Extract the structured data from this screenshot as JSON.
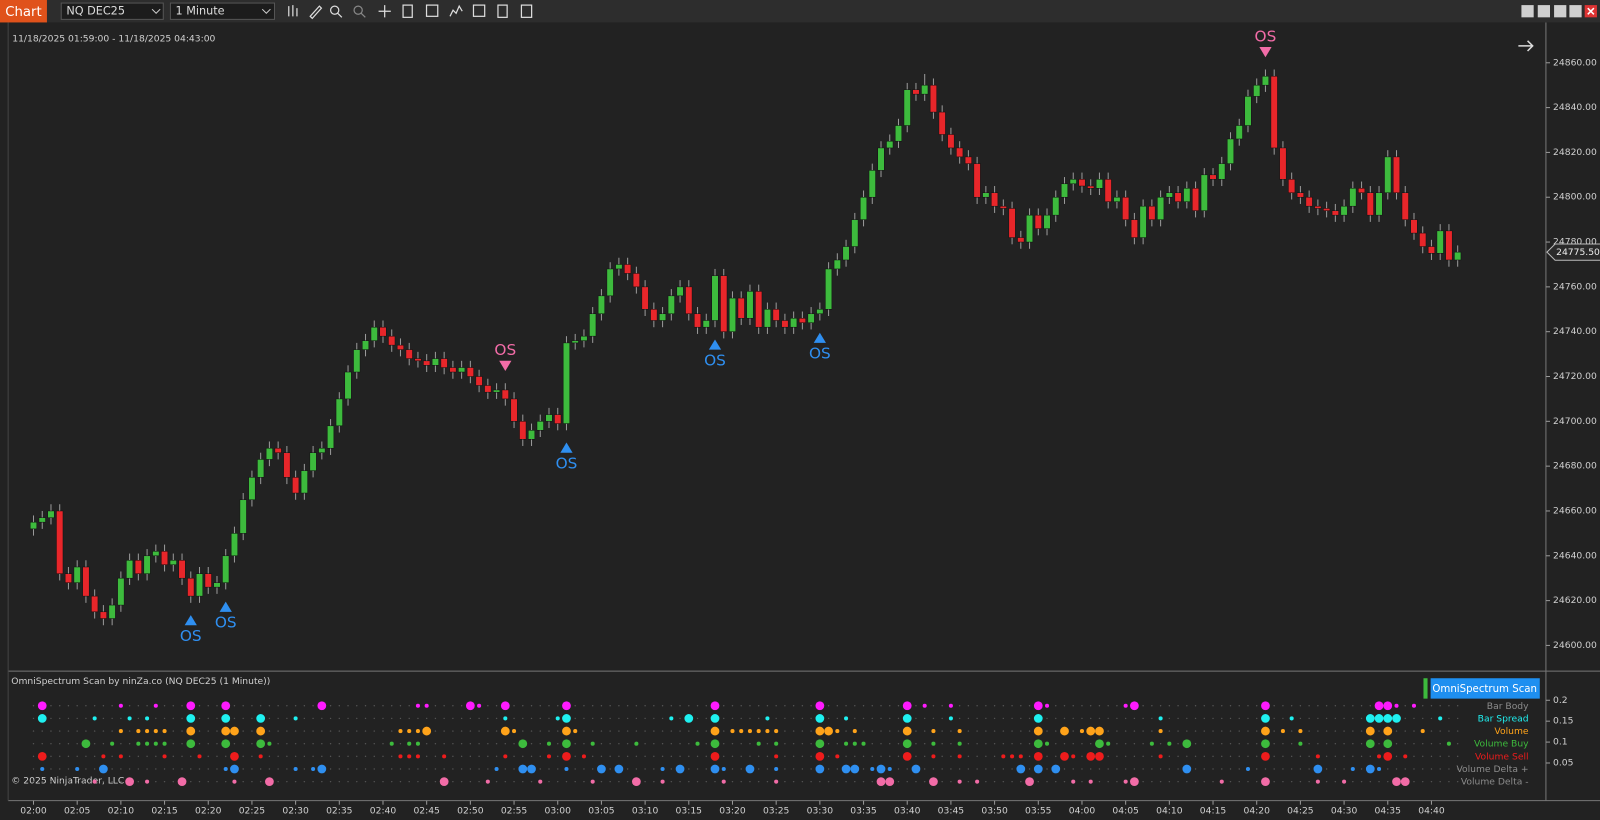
{
  "toolbar": {
    "chart_button": "Chart",
    "instrument": "NQ DEC25",
    "interval": "1 Minute"
  },
  "chart_data": {
    "type": "candlestick",
    "date_range": "11/18/2025 01:59:00 - 11/18/2025 04:43:00",
    "up_color": "#3dbb3d",
    "down_color": "#e8262a",
    "open": [
      24652,
      24655,
      24657,
      24660,
      24632,
      24628,
      24635,
      24622,
      24615,
      24612,
      24618,
      24630,
      24638,
      24632,
      24640,
      24642,
      24636,
      24638,
      24630,
      24622,
      24632,
      24626,
      24628,
      24640,
      24650,
      24665,
      24675,
      24683,
      24688,
      24686,
      24675,
      24668,
      24678,
      24686,
      24688,
      24698,
      24710,
      24722,
      24732,
      24736,
      24742,
      24738,
      24734,
      24732,
      24728,
      24727,
      24725,
      24728,
      24724,
      24722,
      24724,
      24720,
      24716,
      24713,
      24714,
      24710,
      24700,
      24692,
      24696,
      24700,
      24703,
      24699,
      24735,
      24736,
      24738,
      24748,
      24756,
      24768,
      24770,
      24766,
      24760,
      24750,
      24745,
      24748,
      24756,
      24760,
      24748,
      24742,
      24745,
      24765,
      24740,
      24755,
      24746,
      24758,
      24742,
      24750,
      24745,
      24742,
      24746,
      24744,
      24748,
      24750,
      24768,
      24772,
      24778,
      24790,
      24800,
      24812,
      24822,
      24825,
      24832,
      24848,
      24846,
      24850,
      24838,
      24828,
      24822,
      24818,
      24815,
      24800,
      24802,
      24796,
      24795,
      24782,
      24780,
      24792,
      24786,
      24792,
      24800,
      24806,
      24808,
      24805,
      24804,
      24808,
      24798,
      24800,
      24790,
      24782,
      24796,
      24790,
      24800,
      24802,
      24798,
      24804,
      24794,
      24810,
      24808,
      24815,
      24826,
      24832,
      24845,
      24850,
      24854,
      24822,
      24808,
      24802,
      24800,
      24796,
      24795,
      24794,
      24792,
      24796,
      24804,
      24802,
      24792,
      24802,
      24818,
      24802,
      24790,
      24784,
      24778,
      24775,
      24785,
      24772
    ],
    "high": [
      24658,
      24660,
      24663,
      24663,
      24635,
      24638,
      24638,
      24625,
      24618,
      24621,
      24633,
      24641,
      24641,
      24643,
      24645,
      24645,
      24641,
      24641,
      24633,
      24635,
      24635,
      24631,
      24643,
      24653,
      24668,
      24678,
      24686,
      24691,
      24691,
      24689,
      24678,
      24681,
      24689,
      24691,
      24701,
      24713,
      24725,
      24735,
      24739,
      24745,
      24745,
      24741,
      24737,
      24735,
      24731,
      24730,
      24731,
      24731,
      24727,
      24727,
      24727,
      24723,
      24719,
      24717,
      24717,
      24713,
      24703,
      24699,
      24703,
      24706,
      24706,
      24738,
      24739,
      24741,
      24751,
      24759,
      24771,
      24773,
      24773,
      24769,
      24763,
      24753,
      24751,
      24759,
      24763,
      24763,
      24751,
      24748,
      24768,
      24768,
      24758,
      24758,
      24761,
      24761,
      24753,
      24753,
      24748,
      24749,
      24749,
      24751,
      24753,
      24771,
      24775,
      24781,
      24793,
      24803,
      24815,
      24825,
      24828,
      24835,
      24851,
      24851,
      24855,
      24853,
      24841,
      24831,
      24825,
      24821,
      24818,
      24805,
      24805,
      24799,
      24798,
      24785,
      24795,
      24795,
      24795,
      24803,
      24809,
      24811,
      24811,
      24808,
      24811,
      24811,
      24803,
      24803,
      24793,
      24799,
      24799,
      24803,
      24805,
      24805,
      24807,
      24807,
      24813,
      24813,
      24818,
      24829,
      24835,
      24848,
      24853,
      24857,
      24857,
      24825,
      24811,
      24805,
      24803,
      24799,
      24798,
      24797,
      24799,
      24807,
      24807,
      24805,
      24805,
      24821,
      24821,
      24805,
      24793,
      24787,
      24781,
      24788,
      24788,
      24778.5
    ],
    "low": [
      24649,
      24652,
      24654,
      24629,
      24625,
      24625,
      24619,
      24612,
      24609,
      24609,
      24615,
      24627,
      24629,
      24629,
      24637,
      24633,
      24633,
      24627,
      24619,
      24619,
      24623,
      24623,
      24625,
      24637,
      24647,
      24662,
      24672,
      24680,
      24683,
      24672,
      24665,
      24665,
      24675,
      24683,
      24685,
      24695,
      24707,
      24719,
      24729,
      24733,
      24735,
      24731,
      24729,
      24725,
      24724,
      24722,
      24722,
      24721,
      24719,
      24719,
      24717,
      24713,
      24710,
      24710,
      24707,
      24697,
      24689,
      24689,
      24693,
      24697,
      24696,
      24696,
      24732,
      24733,
      24735,
      24745,
      24753,
      24765,
      24763,
      24757,
      24747,
      24742,
      24742,
      24745,
      24753,
      24745,
      24739,
      24739,
      24742,
      24737,
      24737,
      24743,
      24743,
      24739,
      24739,
      24742,
      24739,
      24739,
      24741,
      24741,
      24745,
      24747,
      24765,
      24769,
      24775,
      24787,
      24797,
      24809,
      24819,
      24822,
      24829,
      24843,
      24843,
      24835,
      24825,
      24819,
      24815,
      24812,
      24797,
      24797,
      24793,
      24792,
      24779,
      24777,
      24777,
      24783,
      24783,
      24789,
      24797,
      24803,
      24802,
      24801,
      24801,
      24795,
      24795,
      24787,
      24779,
      24779,
      24787,
      24787,
      24797,
      24795,
      24795,
      24791,
      24791,
      24805,
      24805,
      24812,
      24823,
      24829,
      24842,
      24847,
      24819,
      24805,
      24799,
      24797,
      24793,
      24792,
      24791,
      24789,
      24789,
      24793,
      24799,
      24789,
      24789,
      24799,
      24799,
      24787,
      24781,
      24775,
      24772,
      24772,
      24769,
      24769
    ],
    "close": [
      24655,
      24657,
      24660,
      24632,
      24628,
      24635,
      24622,
      24615,
      24612,
      24618,
      24630,
      24638,
      24632,
      24640,
      24642,
      24636,
      24638,
      24630,
      24622,
      24632,
      24626,
      24628,
      24640,
      24650,
      24665,
      24675,
      24683,
      24688,
      24686,
      24675,
      24668,
      24678,
      24686,
      24688,
      24698,
      24710,
      24722,
      24732,
      24736,
      24742,
      24738,
      24734,
      24732,
      24728,
      24727,
      24725,
      24728,
      24724,
      24722,
      24724,
      24720,
      24716,
      24713,
      24714,
      24710,
      24700,
      24692,
      24696,
      24700,
      24703,
      24699,
      24735,
      24736,
      24738,
      24748,
      24756,
      24768,
      24770,
      24766,
      24760,
      24750,
      24745,
      24748,
      24756,
      24760,
      24748,
      24742,
      24745,
      24765,
      24740,
      24755,
      24746,
      24758,
      24742,
      24750,
      24745,
      24742,
      24746,
      24744,
      24748,
      24750,
      24768,
      24772,
      24778,
      24790,
      24800,
      24812,
      24822,
      24825,
      24832,
      24848,
      24846,
      24850,
      24838,
      24828,
      24822,
      24818,
      24815,
      24800,
      24802,
      24796,
      24795,
      24782,
      24780,
      24792,
      24786,
      24792,
      24800,
      24806,
      24808,
      24805,
      24804,
      24808,
      24798,
      24800,
      24790,
      24782,
      24796,
      24790,
      24800,
      24802,
      24798,
      24804,
      24794,
      24810,
      24808,
      24815,
      24826,
      24832,
      24845,
      24850,
      24854,
      24822,
      24808,
      24802,
      24800,
      24796,
      24795,
      24794,
      24792,
      24796,
      24804,
      24802,
      24792,
      24802,
      24818,
      24802,
      24790,
      24784,
      24778,
      24775,
      24785,
      24772,
      24775.5
    ],
    "xlim": [
      -2.9,
      173.1
    ],
    "xticks": [
      {
        "value": 0,
        "label": "02:00"
      },
      {
        "value": 5,
        "label": "02:05"
      },
      {
        "value": 10,
        "label": "02:10"
      },
      {
        "value": 15,
        "label": "02:15"
      },
      {
        "value": 20,
        "label": "02:20"
      },
      {
        "value": 25,
        "label": "02:25"
      },
      {
        "value": 30,
        "label": "02:30"
      },
      {
        "value": 35,
        "label": "02:35"
      },
      {
        "value": 40,
        "label": "02:40"
      },
      {
        "value": 45,
        "label": "02:45"
      },
      {
        "value": 50,
        "label": "02:50"
      },
      {
        "value": 55,
        "label": "02:55"
      },
      {
        "value": 60,
        "label": "03:00"
      },
      {
        "value": 65,
        "label": "03:05"
      },
      {
        "value": 70,
        "label": "03:10"
      },
      {
        "value": 75,
        "label": "03:15"
      },
      {
        "value": 80,
        "label": "03:20"
      },
      {
        "value": 85,
        "label": "03:25"
      },
      {
        "value": 90,
        "label": "03:30"
      },
      {
        "value": 95,
        "label": "03:35"
      },
      {
        "value": 100,
        "label": "03:40"
      },
      {
        "value": 105,
        "label": "03:45"
      },
      {
        "value": 110,
        "label": "03:50"
      },
      {
        "value": 115,
        "label": "03:55"
      },
      {
        "value": 120,
        "label": "04:00"
      },
      {
        "value": 125,
        "label": "04:05"
      },
      {
        "value": 130,
        "label": "04:10"
      },
      {
        "value": 135,
        "label": "04:15"
      },
      {
        "value": 140,
        "label": "04:20"
      },
      {
        "value": 145,
        "label": "04:25"
      },
      {
        "value": 150,
        "label": "04:30"
      },
      {
        "value": 155,
        "label": "04:35"
      },
      {
        "value": 160,
        "label": "04:40"
      }
    ],
    "ylim": [
      24589,
      24878
    ],
    "yticks": [
      {
        "value": 24600,
        "label": "24600.00"
      },
      {
        "value": 24620,
        "label": "24620.00"
      },
      {
        "value": 24640,
        "label": "24640.00"
      },
      {
        "value": 24660,
        "label": "24660.00"
      },
      {
        "value": 24680,
        "label": "24680.00"
      },
      {
        "value": 24700,
        "label": "24700.00"
      },
      {
        "value": 24720,
        "label": "24720.00"
      },
      {
        "value": 24740,
        "label": "24740.00"
      },
      {
        "value": 24760,
        "label": "24760.00"
      },
      {
        "value": 24780,
        "label": "24780.00"
      },
      {
        "value": 24800,
        "label": "24800.00"
      },
      {
        "value": 24820,
        "label": "24820.00"
      },
      {
        "value": 24840,
        "label": "24840.00"
      },
      {
        "value": 24860,
        "label": "24860.00"
      }
    ],
    "last_price": {
      "value": 24775.5,
      "label": "24775.50"
    },
    "signals": [
      {
        "x": 18,
        "direction": "up",
        "label": "OS",
        "color": "#2f8ff0"
      },
      {
        "x": 22,
        "direction": "up",
        "label": "OS",
        "color": "#2f8ff0"
      },
      {
        "x": 54,
        "direction": "down",
        "label": "OS",
        "color": "#f26ca7"
      },
      {
        "x": 61,
        "direction": "up",
        "label": "OS",
        "color": "#2f8ff0"
      },
      {
        "x": 78,
        "direction": "up",
        "label": "OS",
        "color": "#2f8ff0"
      },
      {
        "x": 90,
        "direction": "up",
        "label": "OS",
        "color": "#2f8ff0"
      },
      {
        "x": 141,
        "direction": "down",
        "label": "OS",
        "color": "#f26ca7"
      }
    ]
  },
  "scan": {
    "title": "OmniSpectrum Scan by ninZa.co (NQ DEC25 (1 Minute))",
    "button": "OmniSpectrum Scan",
    "copyright": "© 2025 NinjaTrader, LLC",
    "ylim": [
      -0.04,
      0.26
    ],
    "yticks": [
      0.2,
      0.15,
      0.1,
      0.05
    ],
    "rows": [
      {
        "name": "Bar Body",
        "color": "#ff1aff",
        "label_color": "#8c8c8c",
        "large": [
          1,
          18,
          22,
          33,
          50,
          54,
          61,
          78,
          90,
          100,
          115,
          126,
          141,
          154,
          155
        ],
        "small": [
          10,
          14,
          44,
          45,
          51,
          102,
          105,
          116,
          125,
          156,
          158
        ]
      },
      {
        "name": "Bar Spread",
        "color": "#1ff0f0",
        "label_color": "#1ff0f0",
        "large": [
          1,
          18,
          22,
          26,
          61,
          75,
          78,
          90,
          100,
          115,
          141,
          153,
          154,
          155,
          156
        ],
        "small": [
          7,
          11,
          13,
          30,
          54,
          60,
          73,
          84,
          93,
          105,
          129,
          144,
          161
        ]
      },
      {
        "name": "Volume",
        "color": "#ffa31a",
        "label_color": "#ffa31a",
        "large": [
          18,
          22,
          23,
          26,
          45,
          54,
          61,
          78,
          90,
          91,
          100,
          115,
          118,
          121,
          122,
          141,
          153,
          155
        ],
        "small": [
          10,
          12,
          13,
          14,
          15,
          42,
          43,
          44,
          55,
          62,
          80,
          81,
          82,
          83,
          84,
          85,
          92,
          94,
          103,
          106,
          120,
          129,
          143,
          145,
          159
        ]
      },
      {
        "name": "Volume Buy",
        "color": "#3dbb3d",
        "label_color": "#3dbb3d",
        "large": [
          6,
          18,
          22,
          26,
          56,
          61,
          78,
          90,
          100,
          115,
          122,
          132,
          141,
          153,
          155
        ],
        "small": [
          9,
          12,
          13,
          14,
          15,
          27,
          41,
          43,
          44,
          59,
          64,
          69,
          76,
          83,
          85,
          93,
          94,
          95,
          103,
          106,
          116,
          123,
          128,
          130,
          145,
          162
        ]
      },
      {
        "name": "Volume Sell",
        "color": "#ee1c1c",
        "label_color": "#ee1c1c",
        "large": [
          1,
          23,
          61,
          78,
          90,
          100,
          115,
          118,
          121,
          122,
          141,
          155
        ],
        "small": [
          8,
          10,
          15,
          19,
          26,
          42,
          43,
          44,
          47,
          54,
          59,
          63,
          85,
          92,
          103,
          106,
          111,
          112,
          113,
          119,
          129,
          147,
          154,
          157
        ]
      },
      {
        "name": "Volume Delta +",
        "color": "#2f8ff0",
        "label_color": "#8c8c8c",
        "large": [
          8,
          23,
          33,
          56,
          57,
          65,
          67,
          74,
          78,
          82,
          90,
          93,
          94,
          97,
          101,
          113,
          115,
          117,
          132,
          147,
          153
        ],
        "small": [
          1,
          5,
          22,
          30,
          32,
          53,
          61,
          72,
          79,
          85,
          96,
          98,
          139,
          151,
          154
        ]
      },
      {
        "name": "Volume Delta -",
        "color": "#f26ca7",
        "label_color": "#8c8c8c",
        "large": [
          11,
          17,
          27,
          47,
          69,
          97,
          98,
          103,
          114,
          126,
          141,
          156,
          157
        ],
        "small": [
          7,
          13,
          23,
          52,
          58,
          64,
          72,
          79,
          85,
          106,
          108,
          119,
          121,
          125,
          136,
          147,
          150
        ]
      }
    ]
  }
}
